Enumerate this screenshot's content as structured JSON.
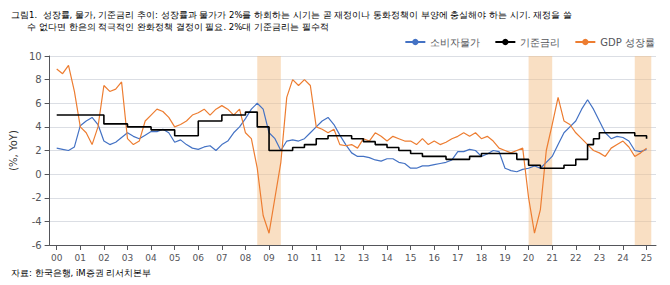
{
  "chart_data": {
    "type": "line",
    "title": "그림1.  성장률, 물가, 기준금리 추이: 성장률과 물가가 2%를 하회하는 시기는 곧 재정이나 통화정책이 부양에 충실해야 하는 시기. 재정을 쓸\n      수 없다면 한은의 적극적인 완화정책 결정이 필요. 2%대 기준금리는 필수적",
    "ylabel": "(%, YoY)",
    "source": "자료: 한국은행, iM증권 리서치본부",
    "xlim": [
      1999.7,
      2025.4
    ],
    "xticks": [
      {
        "value": 2000,
        "label": "00"
      },
      {
        "value": 2001,
        "label": "01"
      },
      {
        "value": 2002,
        "label": "02"
      },
      {
        "value": 2003,
        "label": "03"
      },
      {
        "value": 2004,
        "label": "04"
      },
      {
        "value": 2005,
        "label": "05"
      },
      {
        "value": 2006,
        "label": "06"
      },
      {
        "value": 2007,
        "label": "07"
      },
      {
        "value": 2008,
        "label": "08"
      },
      {
        "value": 2009,
        "label": "09"
      },
      {
        "value": 2010,
        "label": "10"
      },
      {
        "value": 2011,
        "label": "11"
      },
      {
        "value": 2012,
        "label": "12"
      },
      {
        "value": 2013,
        "label": "13"
      },
      {
        "value": 2014,
        "label": "14"
      },
      {
        "value": 2015,
        "label": "15"
      },
      {
        "value": 2016,
        "label": "16"
      },
      {
        "value": 2017,
        "label": "17"
      },
      {
        "value": 2018,
        "label": "18"
      },
      {
        "value": 2019,
        "label": "19"
      },
      {
        "value": 2020,
        "label": "20"
      },
      {
        "value": 2021,
        "label": "21"
      },
      {
        "value": 2022,
        "label": "22"
      },
      {
        "value": 2023,
        "label": "23"
      },
      {
        "value": 2024,
        "label": "24"
      },
      {
        "value": 2025,
        "label": "25"
      }
    ],
    "ylim": [
      -6,
      10
    ],
    "yticks": [
      -6,
      -4,
      -2,
      0,
      2,
      4,
      6,
      8,
      10
    ],
    "grid": true,
    "legend": "upper right",
    "shaded_regions": {
      "color": "#F4C088",
      "ranges": [
        [
          2008.5,
          2009.5
        ],
        [
          2020.0,
          2021.0
        ],
        [
          2024.5,
          2025.2
        ]
      ]
    },
    "series": [
      {
        "name": "소비자물가",
        "color": "#4472C4",
        "type": "line",
        "x": [
          2000.0,
          2000.25,
          2000.5,
          2000.75,
          2001.0,
          2001.25,
          2001.5,
          2001.75,
          2002.0,
          2002.25,
          2002.5,
          2002.75,
          2003.0,
          2003.25,
          2003.5,
          2003.75,
          2004.0,
          2004.25,
          2004.5,
          2004.75,
          2005.0,
          2005.25,
          2005.5,
          2005.75,
          2006.0,
          2006.25,
          2006.5,
          2006.75,
          2007.0,
          2007.25,
          2007.5,
          2007.75,
          2008.0,
          2008.25,
          2008.5,
          2008.75,
          2009.0,
          2009.25,
          2009.5,
          2009.75,
          2010.0,
          2010.25,
          2010.5,
          2010.75,
          2011.0,
          2011.25,
          2011.5,
          2011.75,
          2012.0,
          2012.25,
          2012.5,
          2012.75,
          2013.0,
          2013.25,
          2013.5,
          2013.75,
          2014.0,
          2014.25,
          2014.5,
          2014.75,
          2015.0,
          2015.25,
          2015.5,
          2015.75,
          2016.0,
          2016.25,
          2016.5,
          2016.75,
          2017.0,
          2017.25,
          2017.5,
          2017.75,
          2018.0,
          2018.25,
          2018.5,
          2018.75,
          2019.0,
          2019.25,
          2019.5,
          2019.75,
          2020.0,
          2020.25,
          2020.5,
          2020.75,
          2021.0,
          2021.25,
          2021.5,
          2021.75,
          2022.0,
          2022.25,
          2022.5,
          2022.75,
          2023.0,
          2023.25,
          2023.5,
          2023.75,
          2024.0,
          2024.25,
          2024.5,
          2024.75,
          2025.0
        ],
        "values": [
          2.2,
          2.1,
          2.0,
          2.3,
          4.1,
          4.5,
          4.8,
          4.2,
          2.8,
          2.5,
          2.7,
          3.1,
          3.5,
          3.2,
          3.0,
          3.3,
          3.6,
          3.6,
          3.8,
          3.5,
          2.7,
          2.9,
          2.5,
          2.2,
          2.1,
          2.3,
          2.4,
          2.0,
          2.5,
          2.8,
          3.5,
          4.0,
          4.7,
          5.5,
          6.0,
          5.5,
          3.5,
          3.0,
          2.0,
          2.8,
          2.9,
          2.8,
          3.0,
          3.5,
          4.0,
          4.5,
          4.8,
          4.2,
          3.3,
          2.5,
          1.8,
          1.5,
          1.5,
          1.4,
          1.2,
          1.1,
          1.3,
          1.3,
          1.0,
          0.9,
          0.5,
          0.5,
          0.7,
          0.7,
          0.8,
          0.9,
          1.0,
          1.2,
          1.9,
          1.9,
          2.1,
          2.0,
          1.5,
          1.7,
          2.0,
          1.9,
          0.5,
          0.3,
          0.2,
          0.4,
          0.5,
          0.7,
          0.5,
          1.0,
          1.5,
          2.5,
          3.5,
          4.0,
          4.5,
          5.5,
          6.3,
          5.5,
          4.5,
          3.5,
          3.0,
          3.2,
          3.1,
          2.8,
          2.0,
          1.9,
          2.1
        ]
      },
      {
        "name": "기준금리",
        "color": "#000000",
        "type": "step",
        "x": [
          2000.0,
          2001.0,
          2002.0,
          2003.0,
          2004.0,
          2005.0,
          2006.0,
          2007.0,
          2008.0,
          2008.5,
          2009.0,
          2009.5,
          2010.0,
          2010.5,
          2011.0,
          2011.5,
          2012.0,
          2012.5,
          2013.0,
          2013.5,
          2014.0,
          2014.5,
          2015.0,
          2015.5,
          2016.0,
          2016.5,
          2017.0,
          2017.5,
          2018.0,
          2018.5,
          2019.0,
          2019.5,
          2020.0,
          2020.25,
          2020.5,
          2021.0,
          2021.5,
          2022.0,
          2022.5,
          2022.75,
          2023.0,
          2023.5,
          2024.0,
          2024.25,
          2024.5,
          2024.75,
          2025.0
        ],
        "values": [
          5.0,
          5.0,
          4.25,
          4.0,
          3.75,
          3.25,
          4.5,
          5.0,
          5.25,
          4.0,
          2.0,
          2.0,
          2.25,
          2.5,
          3.0,
          3.25,
          3.25,
          3.0,
          2.75,
          2.5,
          2.25,
          2.0,
          1.75,
          1.5,
          1.5,
          1.25,
          1.25,
          1.5,
          1.75,
          1.75,
          1.75,
          1.25,
          0.75,
          0.75,
          0.5,
          0.5,
          0.75,
          1.25,
          2.5,
          3.0,
          3.5,
          3.5,
          3.5,
          3.5,
          3.25,
          3.25,
          3.0
        ]
      },
      {
        "name": "GDP 성장률",
        "color": "#ED7D31",
        "type": "line",
        "x": [
          2000.0,
          2000.25,
          2000.5,
          2000.75,
          2001.0,
          2001.25,
          2001.5,
          2001.75,
          2002.0,
          2002.25,
          2002.5,
          2002.75,
          2003.0,
          2003.25,
          2003.5,
          2003.75,
          2004.0,
          2004.25,
          2004.5,
          2004.75,
          2005.0,
          2005.25,
          2005.5,
          2005.75,
          2006.0,
          2006.25,
          2006.5,
          2006.75,
          2007.0,
          2007.25,
          2007.5,
          2007.75,
          2008.0,
          2008.25,
          2008.5,
          2008.75,
          2009.0,
          2009.25,
          2009.5,
          2009.75,
          2010.0,
          2010.25,
          2010.5,
          2010.75,
          2011.0,
          2011.25,
          2011.5,
          2011.75,
          2012.0,
          2012.25,
          2012.5,
          2012.75,
          2013.0,
          2013.25,
          2013.5,
          2013.75,
          2014.0,
          2014.25,
          2014.5,
          2014.75,
          2015.0,
          2015.25,
          2015.5,
          2015.75,
          2016.0,
          2016.25,
          2016.5,
          2016.75,
          2017.0,
          2017.25,
          2017.5,
          2017.75,
          2018.0,
          2018.25,
          2018.5,
          2018.75,
          2019.0,
          2019.25,
          2019.5,
          2019.75,
          2020.0,
          2020.25,
          2020.5,
          2020.75,
          2021.0,
          2021.25,
          2021.5,
          2021.75,
          2022.0,
          2022.25,
          2022.5,
          2022.75,
          2023.0,
          2023.25,
          2023.5,
          2023.75,
          2024.0,
          2024.25,
          2024.5,
          2024.75,
          2025.0
        ],
        "values": [
          8.9,
          8.5,
          9.2,
          7.0,
          4.0,
          3.5,
          2.5,
          4.0,
          7.5,
          7.0,
          7.2,
          7.8,
          3.0,
          2.5,
          2.8,
          4.5,
          5.0,
          5.5,
          5.3,
          4.8,
          4.0,
          4.2,
          4.5,
          5.0,
          5.2,
          5.5,
          5.0,
          5.5,
          5.8,
          5.5,
          5.0,
          5.5,
          3.5,
          3.0,
          0.5,
          -3.5,
          -5.0,
          -2.0,
          1.0,
          6.5,
          8.0,
          7.5,
          8.0,
          7.5,
          4.0,
          3.8,
          3.5,
          3.8,
          2.5,
          2.4,
          2.5,
          2.2,
          3.0,
          2.8,
          3.5,
          3.2,
          2.8,
          3.2,
          3.0,
          2.8,
          2.8,
          2.5,
          3.0,
          2.5,
          2.8,
          2.5,
          2.7,
          3.0,
          3.2,
          3.5,
          3.2,
          3.5,
          3.0,
          3.2,
          2.8,
          2.2,
          2.0,
          1.8,
          2.0,
          2.2,
          -2.0,
          -5.0,
          -3.0,
          2.0,
          4.2,
          6.5,
          4.5,
          4.2,
          3.5,
          3.0,
          2.5,
          2.0,
          1.8,
          1.5,
          2.2,
          2.5,
          2.8,
          2.3,
          1.5,
          1.8,
          2.2
        ]
      }
    ]
  }
}
